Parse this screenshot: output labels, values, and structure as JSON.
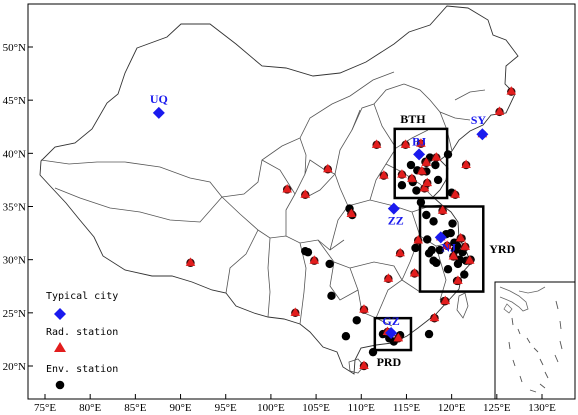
{
  "axes": {
    "lon_ticks": [
      "75°E",
      "80°E",
      "85°E",
      "90°E",
      "95°E",
      "100°E",
      "105°E",
      "110°E",
      "115°E",
      "120°E",
      "125°E",
      "130°E"
    ],
    "lat_ticks": [
      "20°N",
      "25°N",
      "30°N",
      "35°N",
      "40°N",
      "45°N",
      "50°N"
    ]
  },
  "regions": [
    {
      "id": "bth",
      "label": "BTH",
      "lon_range": [
        113.7,
        119.5
      ],
      "lat_range": [
        35.8,
        42.3
      ]
    },
    {
      "id": "yrd",
      "label": "YRD",
      "lon_range": [
        116.5,
        123.5
      ],
      "lat_range": [
        27.0,
        35.0
      ]
    },
    {
      "id": "prd",
      "label": "PRD",
      "lon_range": [
        111.5,
        115.5
      ],
      "lat_range": [
        21.5,
        24.5
      ]
    }
  ],
  "typical_cities": [
    {
      "code": "UQ",
      "lon": 87.6,
      "lat": 43.8
    },
    {
      "code": "BJ",
      "lon": 116.4,
      "lat": 39.9
    },
    {
      "code": "SY",
      "lon": 123.4,
      "lat": 41.8
    },
    {
      "code": "ZZ",
      "lon": 113.6,
      "lat": 34.8
    },
    {
      "code": "NJ",
      "lon": 118.8,
      "lat": 32.1
    },
    {
      "code": "GZ",
      "lon": 113.3,
      "lat": 23.1
    }
  ],
  "rad_stations": [
    [
      91.1,
      29.7
    ],
    [
      101.8,
      36.6
    ],
    [
      103.8,
      36.1
    ],
    [
      106.3,
      38.5
    ],
    [
      111.7,
      40.8
    ],
    [
      117.2,
      39.1
    ],
    [
      114.5,
      38.0
    ],
    [
      112.5,
      37.9
    ],
    [
      117.0,
      36.7
    ],
    [
      120.4,
      36.1
    ],
    [
      121.6,
      38.9
    ],
    [
      126.6,
      45.8
    ],
    [
      125.3,
      43.9
    ],
    [
      123.4,
      41.8
    ],
    [
      119.0,
      34.6
    ],
    [
      116.3,
      31.8
    ],
    [
      120.2,
      30.3
    ],
    [
      121.5,
      31.2
    ],
    [
      115.9,
      28.7
    ],
    [
      113.0,
      28.2
    ],
    [
      114.3,
      30.6
    ],
    [
      119.3,
      26.1
    ],
    [
      118.1,
      24.5
    ],
    [
      110.3,
      25.3
    ],
    [
      102.7,
      25.0
    ],
    [
      113.3,
      23.1
    ],
    [
      114.1,
      22.6
    ],
    [
      112.9,
      23.2
    ],
    [
      115.6,
      37.6
    ],
    [
      118.3,
      39.6
    ],
    [
      116.7,
      38.3
    ],
    [
      114.9,
      40.8
    ],
    [
      118.8,
      32.1
    ],
    [
      121.0,
      32.0
    ],
    [
      122.0,
      29.9
    ],
    [
      120.7,
      28.0
    ],
    [
      119.5,
      31.3
    ],
    [
      117.3,
      37.2
    ],
    [
      116.6,
      40.9
    ],
    [
      110.3,
      20.0
    ],
    [
      104.8,
      29.9
    ],
    [
      108.9,
      34.3
    ]
  ],
  "env_stations": [
    [
      116.4,
      39.9
    ],
    [
      117.1,
      39.2
    ],
    [
      115.5,
      38.9
    ],
    [
      116.2,
      38.4
    ],
    [
      117.6,
      39.6
    ],
    [
      118.2,
      38.9
    ],
    [
      114.5,
      37.0
    ],
    [
      115.7,
      37.3
    ],
    [
      116.1,
      36.5
    ],
    [
      117.2,
      38.3
    ],
    [
      118.5,
      37.5
    ],
    [
      119.0,
      34.6
    ],
    [
      118.0,
      33.6
    ],
    [
      117.2,
      34.2
    ],
    [
      120.1,
      33.4
    ],
    [
      118.8,
      32.1
    ],
    [
      119.4,
      32.4
    ],
    [
      120.3,
      31.6
    ],
    [
      120.6,
      31.3
    ],
    [
      121.5,
      31.2
    ],
    [
      121.2,
      30.7
    ],
    [
      120.2,
      30.3
    ],
    [
      120.9,
      30.0
    ],
    [
      121.6,
      29.9
    ],
    [
      120.7,
      29.6
    ],
    [
      119.6,
      29.1
    ],
    [
      120.6,
      28.0
    ],
    [
      118.0,
      29.9
    ],
    [
      117.3,
      31.9
    ],
    [
      116.0,
      31.1
    ],
    [
      117.8,
      30.9
    ],
    [
      122.1,
      30.0
    ],
    [
      119.9,
      32.5
    ],
    [
      117.5,
      30.6
    ],
    [
      118.7,
      30.9
    ],
    [
      121.1,
      32.0
    ],
    [
      120.4,
      30.9
    ],
    [
      118.3,
      29.7
    ],
    [
      121.4,
      28.6
    ],
    [
      119.2,
      26.1
    ],
    [
      118.1,
      24.5
    ],
    [
      117.5,
      23.0
    ],
    [
      112.4,
      23.0
    ],
    [
      113.6,
      22.3
    ],
    [
      113.1,
      22.6
    ],
    [
      111.3,
      21.3
    ],
    [
      108.3,
      22.8
    ],
    [
      106.7,
      26.6
    ],
    [
      104.1,
      30.7
    ],
    [
      106.5,
      29.6
    ],
    [
      109.0,
      34.2
    ],
    [
      108.7,
      34.8
    ],
    [
      103.8,
      30.8
    ],
    [
      109.5,
      24.3
    ],
    [
      114.3,
      22.9
    ],
    [
      119.6,
      39.9
    ],
    [
      120.0,
      36.3
    ],
    [
      116.6,
      35.4
    ]
  ],
  "legend": {
    "typical_city": "Typical city",
    "rad_station": "Rad. station",
    "env_station": "Env. station"
  },
  "colors": {
    "typical_city": "#1a1aee",
    "rad_station": "#e21d1d",
    "env_station": "#000000",
    "boundary": "#555555"
  }
}
